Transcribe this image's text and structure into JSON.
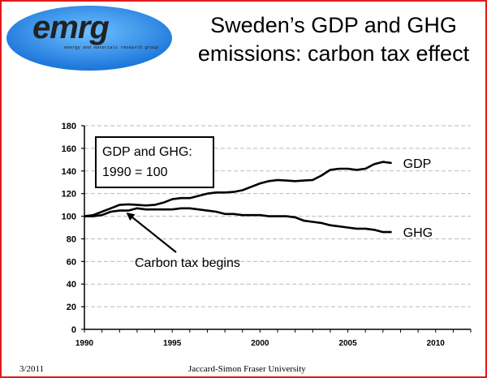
{
  "logo": {
    "text": "emrg",
    "subtitle": "energy and materials research group"
  },
  "slide": {
    "title_line1": "Sweden’s GDP and GHG",
    "title_line2": "emissions: carbon tax effect"
  },
  "footer": {
    "date": "3/2011",
    "credit": "Jaccard-Simon Fraser University"
  },
  "colors": {
    "frame": "#e11b1b",
    "logo_fill": "#2a88e8",
    "line": "#000000",
    "grid": "#bbbbbb"
  },
  "chart_data": {
    "type": "line",
    "xlim": [
      1990,
      2012
    ],
    "ylim": [
      0,
      180
    ],
    "xticks": [
      1990,
      1995,
      2000,
      2005,
      2010
    ],
    "yticks": [
      0,
      20,
      40,
      60,
      80,
      100,
      120,
      140,
      160,
      180
    ],
    "grid": true,
    "box_text_line1": "GDP and GHG:",
    "box_text_line2": "1990 = 100",
    "annotation": {
      "text": "Carbon tax begins",
      "x": 1992.5,
      "y": 106
    },
    "series": [
      {
        "name": "GDP",
        "x": [
          1990,
          1990.5,
          1991,
          1991.5,
          1992,
          1992.5,
          1993,
          1993.5,
          1994,
          1994.5,
          1995,
          1995.5,
          1996,
          1996.5,
          1997,
          1997.5,
          1998,
          1998.5,
          1999,
          1999.5,
          2000,
          2000.5,
          2001,
          2001.5,
          2002,
          2002.5,
          2003,
          2003.5,
          2004,
          2004.5,
          2005,
          2005.5,
          2006,
          2006.5,
          2007,
          2007.5
        ],
        "values": [
          100,
          101,
          104,
          107,
          110,
          110.5,
          110,
          109.5,
          110,
          112,
          115,
          116,
          116,
          118,
          120,
          121,
          121,
          121.5,
          123,
          126,
          129,
          131,
          132,
          131.5,
          131,
          131.5,
          132,
          136,
          141,
          142,
          142,
          141,
          142,
          146,
          148,
          147
        ]
      },
      {
        "name": "GHG",
        "x": [
          1990,
          1990.5,
          1991,
          1991.5,
          1992,
          1992.5,
          1993,
          1993.5,
          1994,
          1994.5,
          1995,
          1995.5,
          1996,
          1996.5,
          1997,
          1997.5,
          1998,
          1998.5,
          1999,
          1999.5,
          2000,
          2000.5,
          2001,
          2001.5,
          2002,
          2002.5,
          2003,
          2003.5,
          2004,
          2004.5,
          2005,
          2005.5,
          2006,
          2006.5,
          2007,
          2007.5
        ],
        "values": [
          100,
          100,
          101,
          104,
          105,
          105,
          107,
          106,
          106,
          106,
          106,
          107,
          107,
          106,
          105,
          104,
          102,
          102,
          101,
          101,
          101,
          100,
          100,
          100,
          99,
          96,
          95,
          94,
          92,
          91,
          90,
          89,
          89,
          88,
          86,
          86
        ]
      }
    ]
  }
}
